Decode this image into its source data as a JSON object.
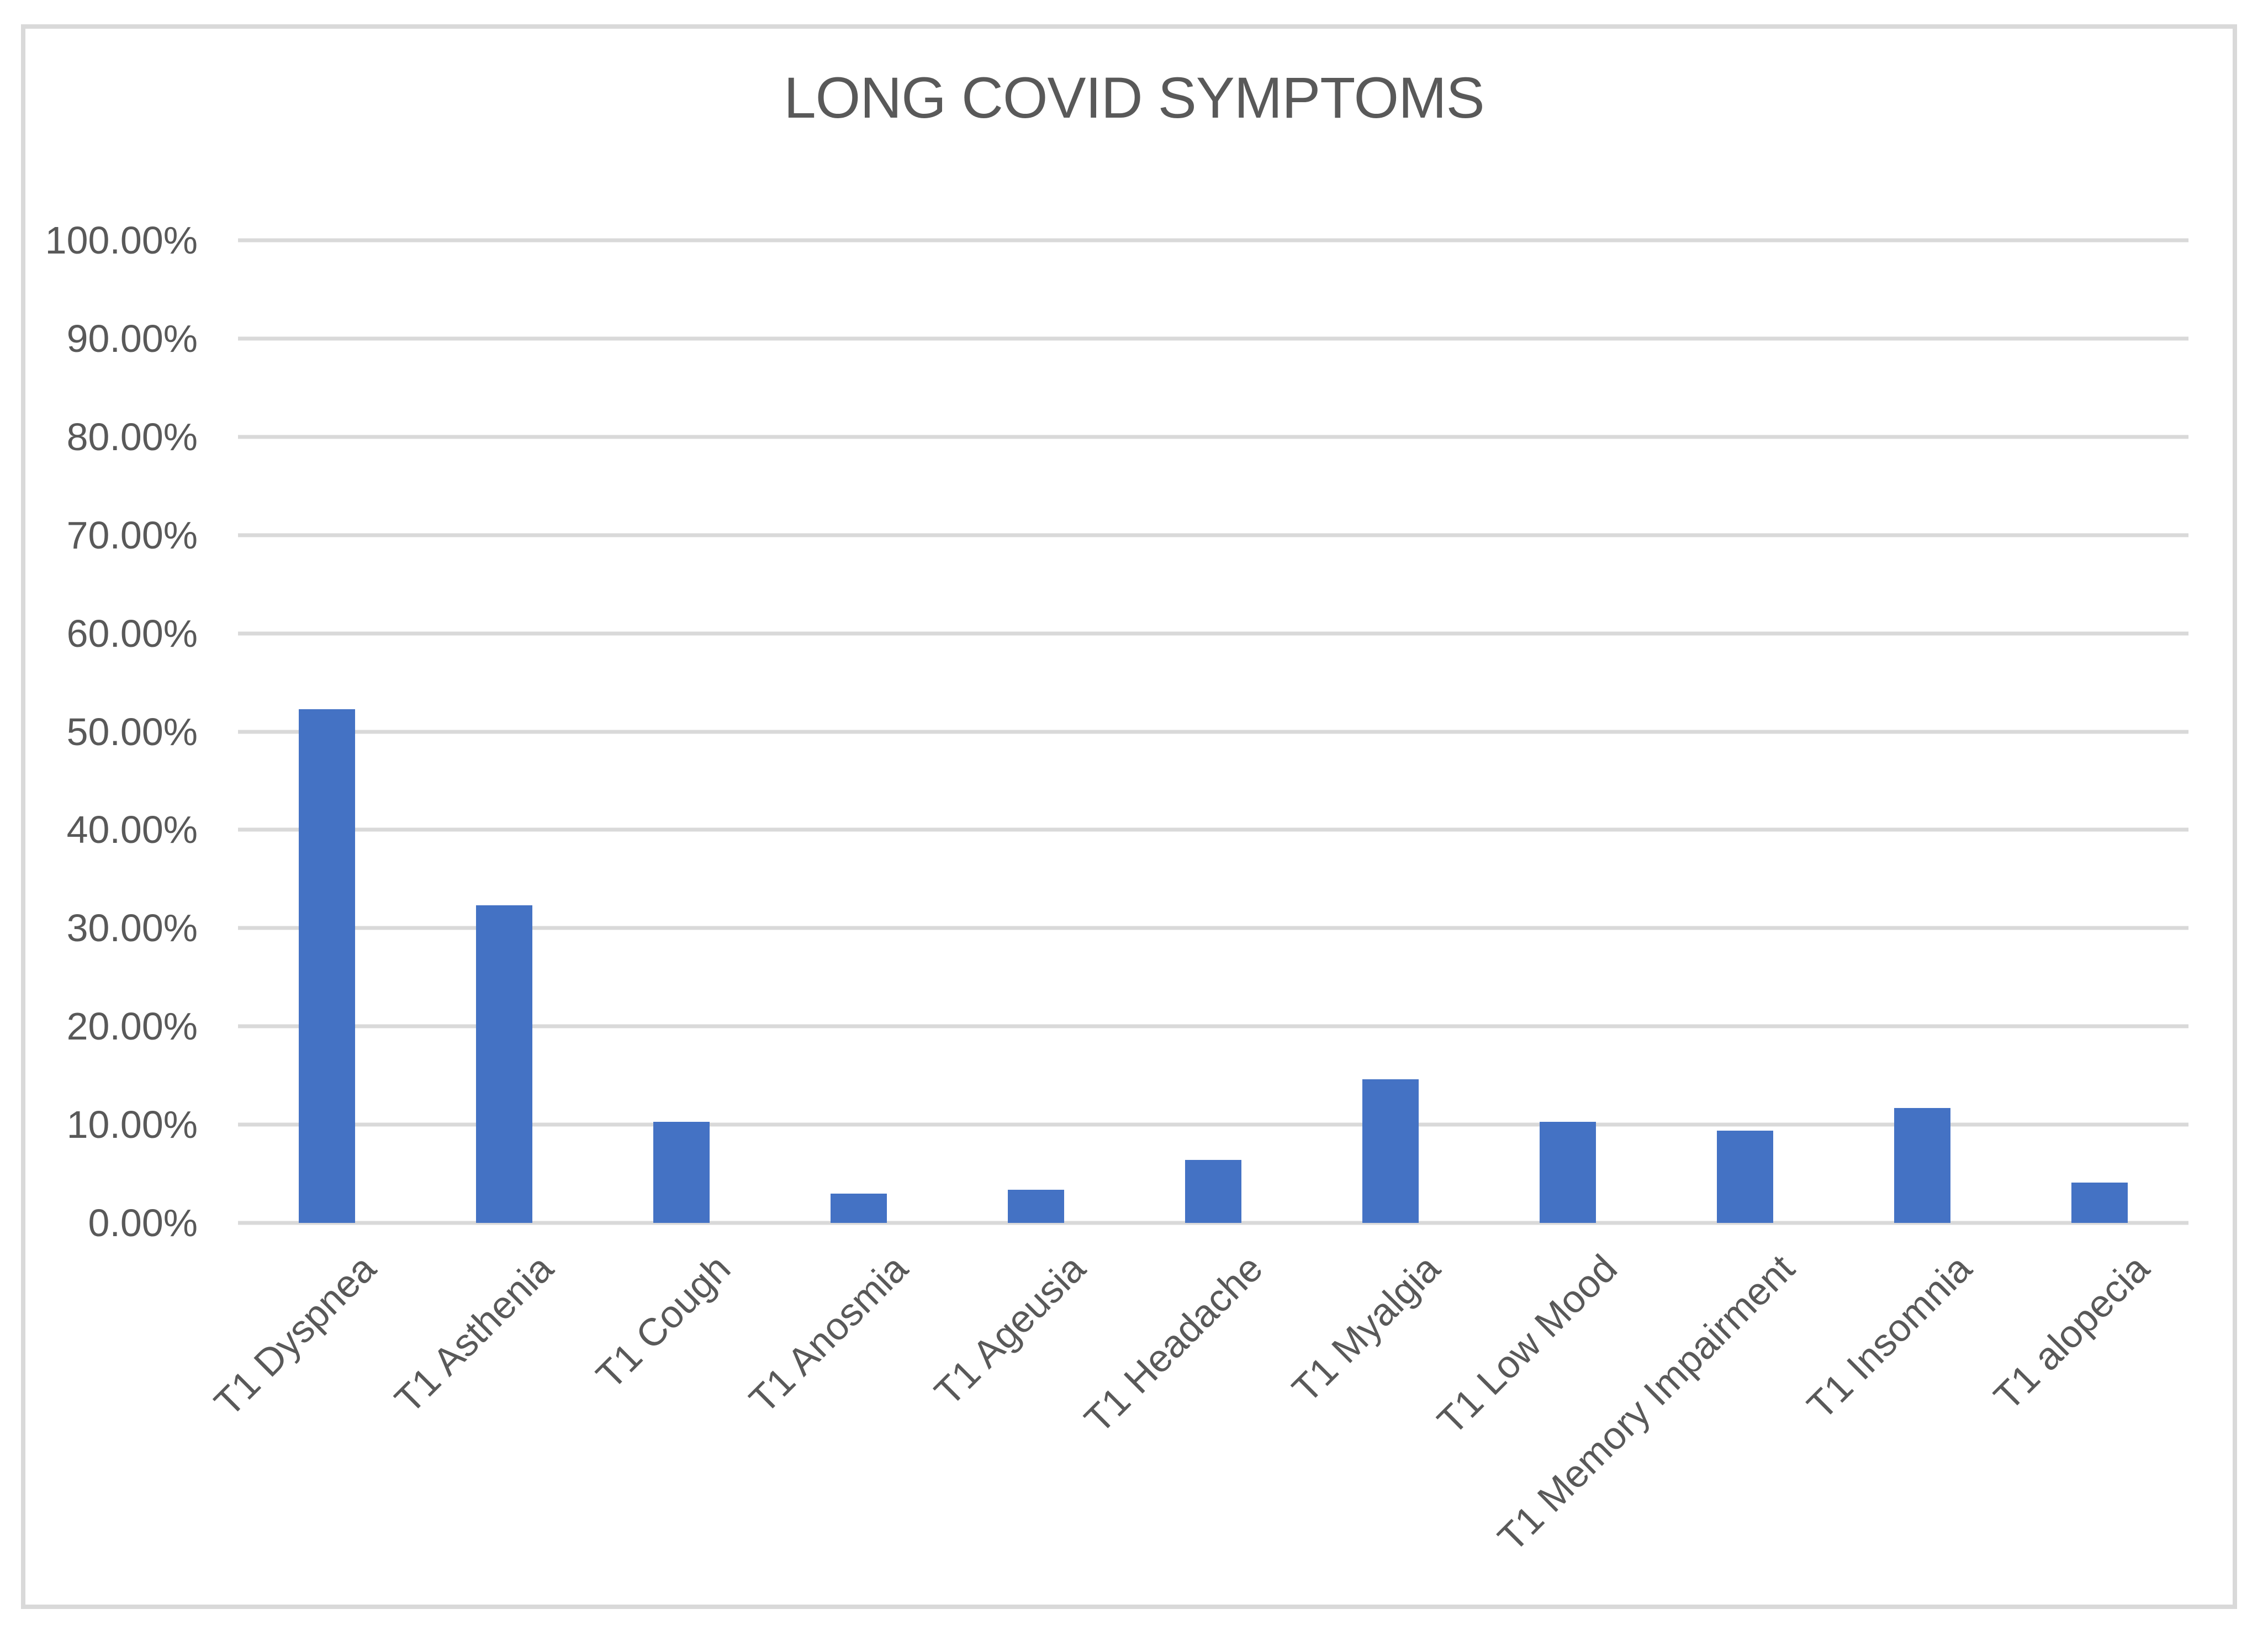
{
  "page": {
    "background_color": "#FFFFFF",
    "border_color": "#D9D9D9"
  },
  "chart_data": {
    "type": "bar",
    "title": "LONG COVID SYMPTOMS",
    "categories": [
      "T1 Dyspnea",
      "T1 Asthenia",
      "T1 Cough",
      "T1 Anosmia",
      "T1 Ageusia",
      "T1 Headache",
      "T1 Myalgia",
      "T1 Low Mood",
      "T1 Memory Impairment",
      "T1 Insomnia",
      "T1 alopecia"
    ],
    "values": [
      52.3,
      32.3,
      10.3,
      3.0,
      3.4,
      6.4,
      14.6,
      10.3,
      9.4,
      11.7,
      4.1
    ],
    "value_unit": "percent",
    "xlabel": "",
    "ylabel": "",
    "y_axis": {
      "min": 0,
      "max": 100,
      "tick_step": 10,
      "tick_labels": [
        "0.00%",
        "10.00%",
        "20.00%",
        "30.00%",
        "40.00%",
        "50.00%",
        "60.00%",
        "70.00%",
        "80.00%",
        "90.00%",
        "100.00%"
      ]
    },
    "x_tick_rotation_deg": 45,
    "grid": true,
    "legend_visible": false,
    "colors": {
      "bar": "#4472C4",
      "gridline": "#D9D9D9",
      "axis_text": "#595959",
      "title_text": "#595959"
    }
  }
}
